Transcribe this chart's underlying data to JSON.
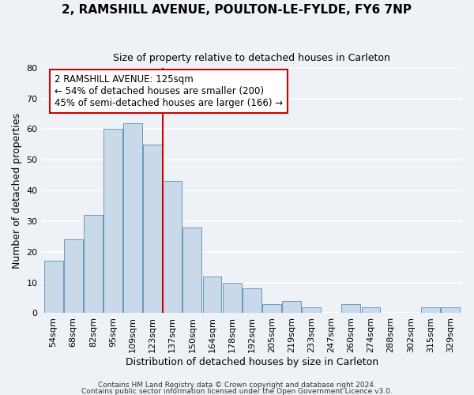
{
  "title": "2, RAMSHILL AVENUE, POULTON-LE-FYLDE, FY6 7NP",
  "subtitle": "Size of property relative to detached houses in Carleton",
  "xlabel": "Distribution of detached houses by size in Carleton",
  "ylabel": "Number of detached properties",
  "bar_color": "#c9d9ea",
  "bar_edge_color": "#6699bb",
  "categories": [
    "54sqm",
    "68sqm",
    "82sqm",
    "95sqm",
    "109sqm",
    "123sqm",
    "137sqm",
    "150sqm",
    "164sqm",
    "178sqm",
    "192sqm",
    "205sqm",
    "219sqm",
    "233sqm",
    "247sqm",
    "260sqm",
    "274sqm",
    "288sqm",
    "302sqm",
    "315sqm",
    "329sqm"
  ],
  "values": [
    17,
    24,
    32,
    60,
    62,
    55,
    43,
    28,
    12,
    10,
    8,
    3,
    4,
    2,
    0,
    3,
    2,
    0,
    0,
    2,
    2
  ],
  "vline_x": 5.5,
  "vline_color": "#cc0000",
  "annotation_title": "2 RAMSHILL AVENUE: 125sqm",
  "annotation_line1": "← 54% of detached houses are smaller (200)",
  "annotation_line2": "45% of semi-detached houses are larger (166) →",
  "annotation_box_color": "#ffffff",
  "annotation_box_edge": "#cc0000",
  "ylim": [
    0,
    80
  ],
  "yticks": [
    0,
    10,
    20,
    30,
    40,
    50,
    60,
    70,
    80
  ],
  "footer1": "Contains HM Land Registry data © Crown copyright and database right 2024.",
  "footer2": "Contains public sector information licensed under the Open Government Licence v3.0.",
  "background_color": "#eef2f7",
  "grid_color": "#ffffff",
  "title_fontsize": 11,
  "subtitle_fontsize": 9,
  "tick_fontsize": 8,
  "label_fontsize": 9,
  "footer_fontsize": 6.5
}
